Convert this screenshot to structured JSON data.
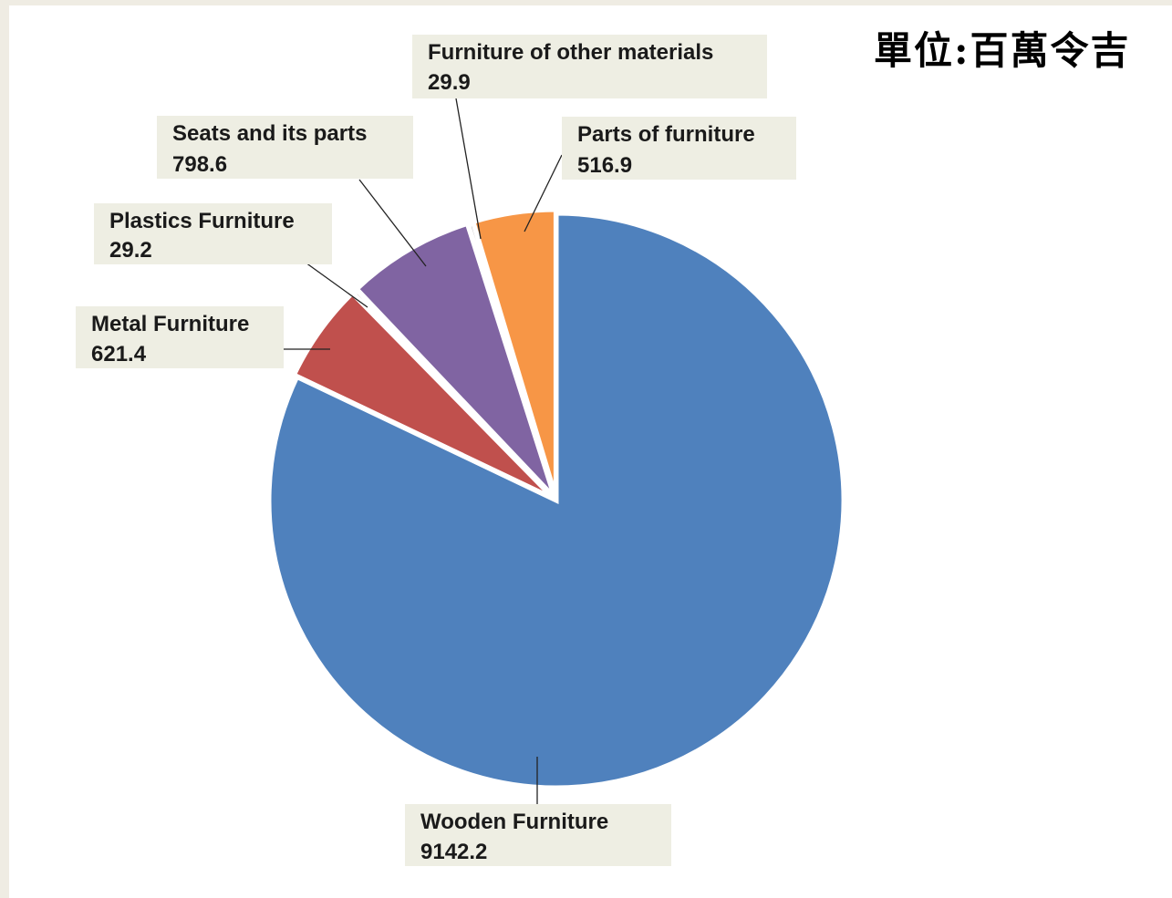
{
  "unit_label": "單位:百萬令吉",
  "chart_data": {
    "type": "pie",
    "title": "",
    "unit": "單位:百萬令吉",
    "slices": [
      {
        "label": "Wooden Furniture",
        "value": 9142.2,
        "value_text": "9142.2",
        "color": "#4f81bd"
      },
      {
        "label": "Metal Furniture",
        "value": 621.4,
        "value_text": "621.4",
        "color": "#c0504d"
      },
      {
        "label": "Plastics Furniture",
        "value": 29.2,
        "value_text": "29.2",
        "color": "#a0504d"
      },
      {
        "label": "Seats and its parts",
        "value": 798.6,
        "value_text": "798.6",
        "color": "#8064a2"
      },
      {
        "label": "Furniture of other materials",
        "value": 29.9,
        "value_text": "29.9",
        "color": "#7a7a7a"
      },
      {
        "label": "Parts of furniture",
        "value": 516.9,
        "value_text": "516.9",
        "color": "#f79646"
      }
    ]
  }
}
